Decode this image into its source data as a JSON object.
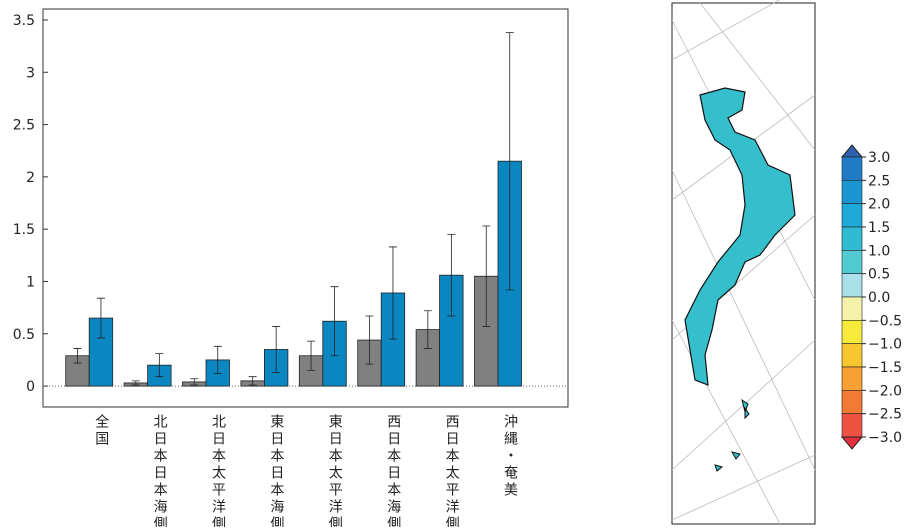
{
  "chart_data": {
    "type": "bar",
    "categories": [
      "全国",
      "北日本日本海側",
      "北日本太平洋側",
      "東日本日本海側",
      "東日本太平洋側",
      "西日本日本海側",
      "西日本太平洋側",
      "沖縄・奄美"
    ],
    "series": [
      {
        "color": "#808080",
        "values": [
          0.29,
          0.03,
          0.04,
          0.05,
          0.29,
          0.44,
          0.54,
          1.05
        ],
        "errors": [
          0.07,
          0.02,
          0.03,
          0.04,
          0.14,
          0.23,
          0.18,
          0.48
        ]
      },
      {
        "color": "#0a86c0",
        "values": [
          0.65,
          0.2,
          0.25,
          0.35,
          0.62,
          0.89,
          1.06,
          2.15
        ],
        "errors": [
          0.19,
          0.11,
          0.13,
          0.22,
          0.33,
          0.44,
          0.39,
          1.23
        ]
      }
    ],
    "ylim": [
      -0.2,
      3.6
    ],
    "yticks": [
      0,
      0.5,
      1,
      1.5,
      2,
      2.5,
      3,
      3.5
    ],
    "colorbar": {
      "ticks": [
        {
          "value": 3,
          "label": "3.0"
        },
        {
          "value": 2.5,
          "label": "2.5"
        },
        {
          "value": 2,
          "label": "2.0"
        },
        {
          "value": 1.5,
          "label": "1.5"
        },
        {
          "value": 1,
          "label": "1.0"
        },
        {
          "value": 0.5,
          "label": "0.5"
        },
        {
          "value": 0,
          "label": "0.0"
        },
        {
          "value": -0.5,
          "label": "−0.5"
        },
        {
          "value": -1,
          "label": "−1.0"
        },
        {
          "value": -1.5,
          "label": "−1.5"
        },
        {
          "value": -2,
          "label": "−2.0"
        },
        {
          "value": -2.5,
          "label": "−2.5"
        },
        {
          "value": -3,
          "label": "−3.0"
        }
      ],
      "colors": [
        "#2d62b0",
        "#1f7cc4",
        "#1b95d2",
        "#1eaad8",
        "#2fbcd2",
        "#52cad3",
        "#a9e0ea",
        "#f4f2a8",
        "#f6ea3a",
        "#f8c62e",
        "#f7a132",
        "#f27a34",
        "#ee5240",
        "#e2303e"
      ]
    }
  }
}
